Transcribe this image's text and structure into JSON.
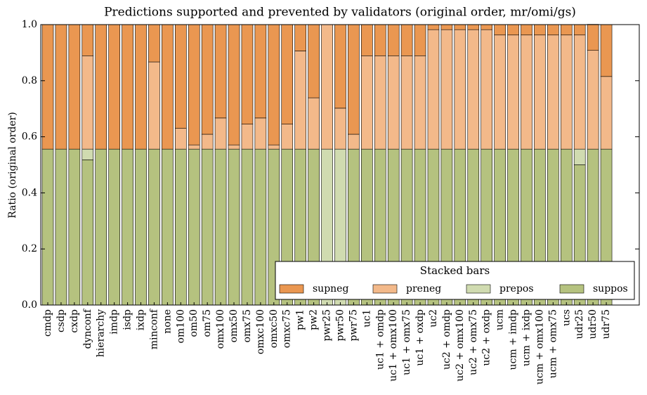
{
  "chart_data": {
    "type": "stacked_bar",
    "title": "Predictions supported and prevented by validators (original order, mr/omi/gs)",
    "y_label": "Ratio (original order)",
    "categories": [
      "cmdp",
      "csdp",
      "cxdp",
      "dynconf",
      "hierarchy",
      "imdp",
      "isdp",
      "ixdp",
      "minconf",
      "none",
      "om100",
      "om50",
      "om75",
      "omx100",
      "omx50",
      "omx75",
      "omxc100",
      "omxc50",
      "omxc75",
      "pw1",
      "pw2",
      "pwr25",
      "pwr50",
      "pwr75",
      "uc1",
      "uc1 + omdp",
      "uc1 + omx100",
      "uc1 + omx75",
      "uc1 + oxdp",
      "uc2",
      "uc2 + omdp",
      "uc2 + omx100",
      "uc2 + omx75",
      "uc2 + oxdp",
      "ucm",
      "ucm + imdp",
      "ucm + ixdp",
      "ucm + omx100",
      "ucm + omx75",
      "ucs",
      "udr25",
      "udr50",
      "udr75"
    ],
    "series": [
      {
        "name": "suppos",
        "color": "#b5c27f",
        "values": [
          0.556,
          0.556,
          0.556,
          0.518,
          0.556,
          0.556,
          0.556,
          0.556,
          0.556,
          0.556,
          0.556,
          0.556,
          0.556,
          0.556,
          0.556,
          0.556,
          0.556,
          0.556,
          0.556,
          0.556,
          0.556,
          0,
          0,
          0.556,
          0.556,
          0.556,
          0.556,
          0.556,
          0.556,
          0.556,
          0.556,
          0.556,
          0.556,
          0.556,
          0.556,
          0.556,
          0.556,
          0.556,
          0.556,
          0.556,
          0.5,
          0.556,
          0.556
        ]
      },
      {
        "name": "prepos",
        "color": "#d0dbb0",
        "values": [
          0,
          0,
          0,
          0.038,
          0,
          0,
          0,
          0,
          0,
          0,
          0,
          0,
          0,
          0,
          0,
          0,
          0,
          0,
          0,
          0,
          0,
          0.556,
          0.556,
          0,
          0,
          0,
          0,
          0,
          0,
          0,
          0,
          0,
          0,
          0,
          0,
          0,
          0,
          0,
          0,
          0,
          0.056,
          0,
          0
        ]
      },
      {
        "name": "preneg",
        "color": "#f3b98a",
        "values": [
          0,
          0,
          0,
          0.333,
          0,
          0,
          0,
          0,
          0.311,
          0,
          0.074,
          0.015,
          0.053,
          0.111,
          0.015,
          0.089,
          0.111,
          0.015,
          0.089,
          0.35,
          0.183,
          0.444,
          0.146,
          0.053,
          0.333,
          0.333,
          0.333,
          0.333,
          0.333,
          0.426,
          0.426,
          0.426,
          0.426,
          0.426,
          0.407,
          0.407,
          0.407,
          0.407,
          0.407,
          0.407,
          0.407,
          0.352,
          0.259
        ]
      },
      {
        "name": "supneg",
        "color": "#ea9751",
        "values": [
          0.444,
          0.444,
          0.444,
          0.111,
          0.444,
          0.444,
          0.444,
          0.444,
          0.133,
          0.444,
          0.37,
          0.429,
          0.391,
          0.333,
          0.429,
          0.355,
          0.333,
          0.429,
          0.355,
          0.094,
          0.261,
          0,
          0.298,
          0.391,
          0.111,
          0.111,
          0.111,
          0.111,
          0.111,
          0.018,
          0.018,
          0.018,
          0.018,
          0.018,
          0.037,
          0.037,
          0.037,
          0.037,
          0.037,
          0.037,
          0.037,
          0.093,
          0.185
        ]
      }
    ],
    "ylim": [
      0,
      1
    ],
    "yticks": [
      {
        "value": 0,
        "label": "0.0"
      },
      {
        "value": 0.2,
        "label": "0.2"
      },
      {
        "value": 0.4,
        "label": "0.4"
      },
      {
        "value": 0.6,
        "label": "0.6"
      },
      {
        "value": 0.8,
        "label": "0.8"
      },
      {
        "value": 1,
        "label": "1.0"
      }
    ],
    "legend_title": "Stacked bars",
    "legend": "lower right"
  }
}
